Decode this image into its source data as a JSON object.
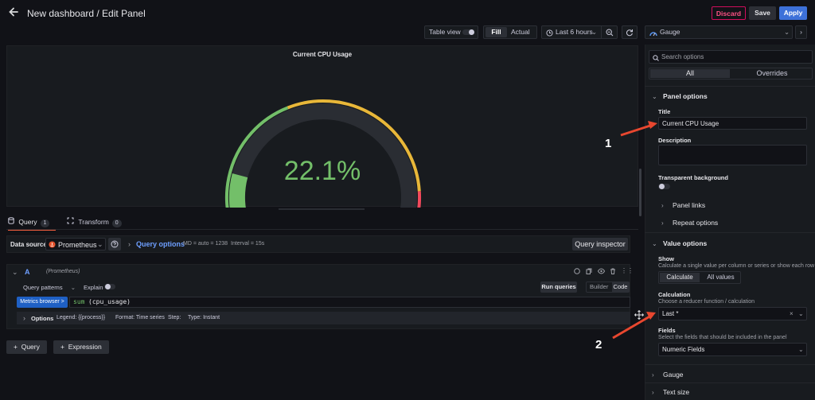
{
  "header": {
    "title": "New dashboard / Edit Panel",
    "discard_label": "Discard",
    "save_label": "Save",
    "apply_label": "Apply"
  },
  "toolbar": {
    "table_view_label": "Table view",
    "fill_label": "Fill",
    "actual_label": "Actual",
    "time_range_label": "Last 6 hours",
    "visualization_label": "Gauge"
  },
  "panel": {
    "title": "Current CPU Usage",
    "value_text": "22.1%",
    "gauge_fraction": 0.221,
    "colors": {
      "green": "#73bf69",
      "yellow": "#e8b739",
      "red": "#f2495c",
      "track": "#2a2d33"
    }
  },
  "query_tabs": [
    {
      "label": "Query",
      "count": "1"
    },
    {
      "label": "Transform",
      "count": "0"
    }
  ],
  "query_bar": {
    "data_source_label": "Data source",
    "data_source_value": "Prometheus",
    "query_options_label": "Query options",
    "md_text": "MD = auto = 1238",
    "interval_text": "Interval = 15s",
    "inspector_label": "Query inspector"
  },
  "query": {
    "ref_id": "A",
    "source_hint": "(Prometheus)",
    "patterns_label": "Query patterns",
    "explain_label": "Explain",
    "run_label": "Run queries",
    "builder_label": "Builder",
    "code_label": "Code",
    "metrics_browser_label": "Metrics browser >",
    "expression_fn": "sum",
    "expression_arg": "(cpu_usage)",
    "options_label": "Options",
    "legend_text": "Legend: {{process}}",
    "format_text": "Format: Time series",
    "step_text": "Step:",
    "type_text": "Type: Instant"
  },
  "add": {
    "query_label": "Query",
    "expression_label": "Expression"
  },
  "options_pane": {
    "search_placeholder": "Search options",
    "tab_all": "All",
    "tab_overrides": "Overrides",
    "panel_options_label": "Panel options",
    "title_label": "Title",
    "title_value": "Current CPU Usage",
    "description_label": "Description",
    "transparent_label": "Transparent background",
    "panel_links_label": "Panel links",
    "repeat_options_label": "Repeat options",
    "value_options_label": "Value options",
    "show_label": "Show",
    "show_desc": "Calculate a single value per column or series or show each row",
    "calculate_label": "Calculate",
    "all_values_label": "All values",
    "calculation_label": "Calculation",
    "calculation_desc": "Choose a reducer function / calculation",
    "calculation_value": "Last *",
    "fields_label": "Fields",
    "fields_desc": "Select the fields that should be included in the panel",
    "fields_value": "Numeric Fields",
    "gauge_label": "Gauge",
    "text_size_label": "Text size"
  },
  "annotations": {
    "one": "1",
    "two": "2",
    "arrow_color": "#e8472f"
  }
}
